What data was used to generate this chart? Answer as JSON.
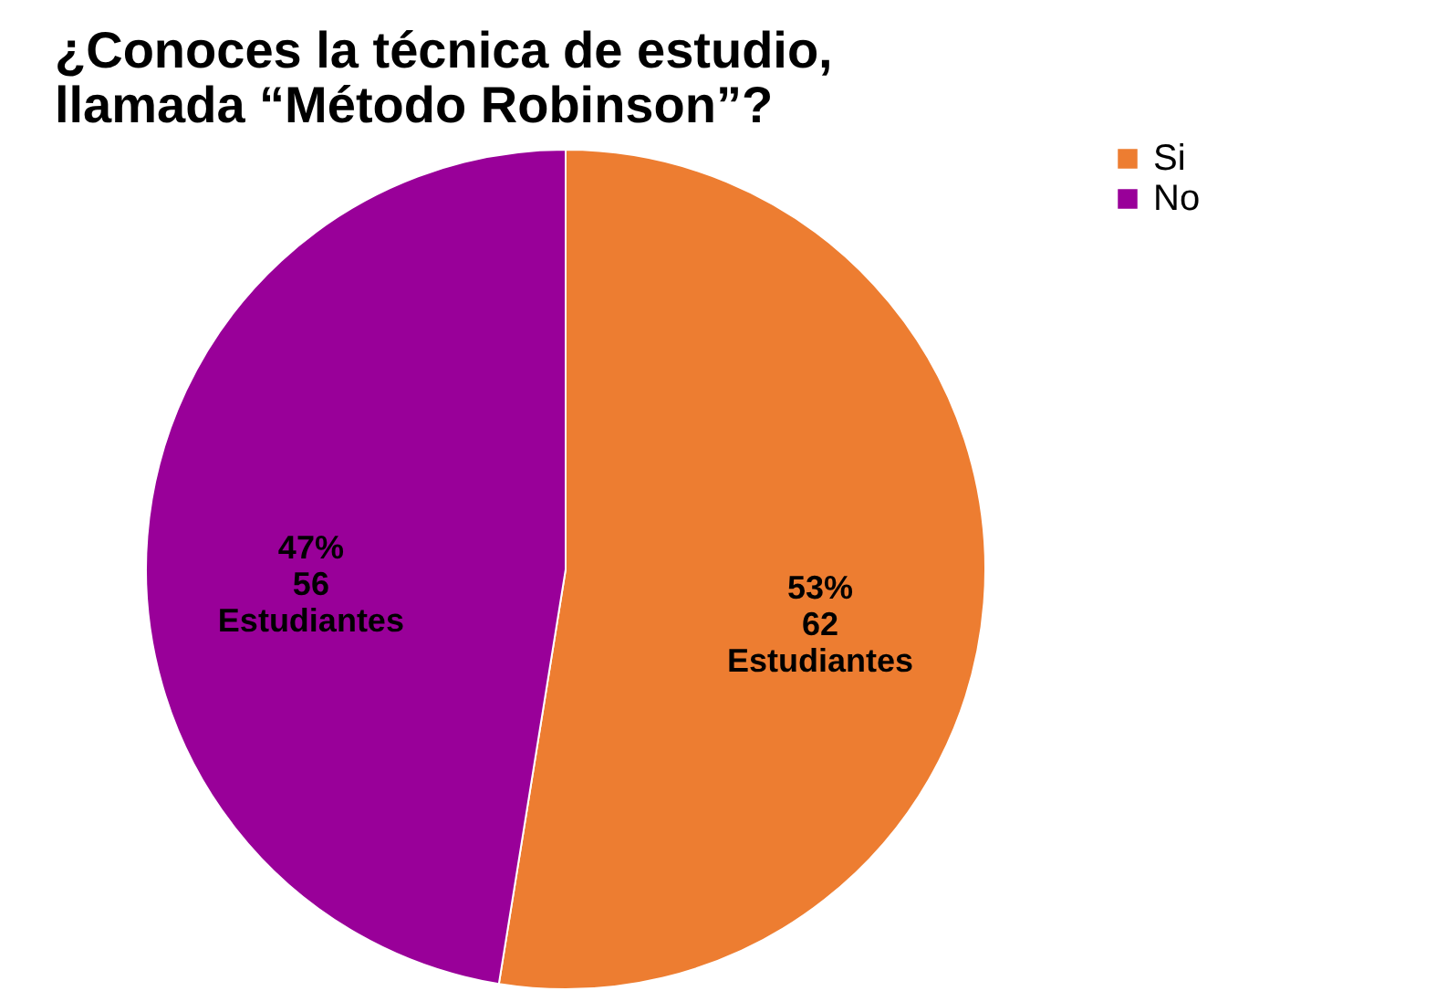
{
  "chart_data": {
    "type": "pie",
    "title": [
      "¿Conoces la técnica de estudio,",
      "llamada   “Método Robinson”?"
    ],
    "categories": [
      "Si",
      "No"
    ],
    "values": [
      62,
      56
    ],
    "colors": [
      "#ed7d31",
      "#990099"
    ],
    "value_labels": [
      "53%\n62\nEstudiantes",
      "47%\n56\nEstudiantes"
    ],
    "legend": "right"
  }
}
